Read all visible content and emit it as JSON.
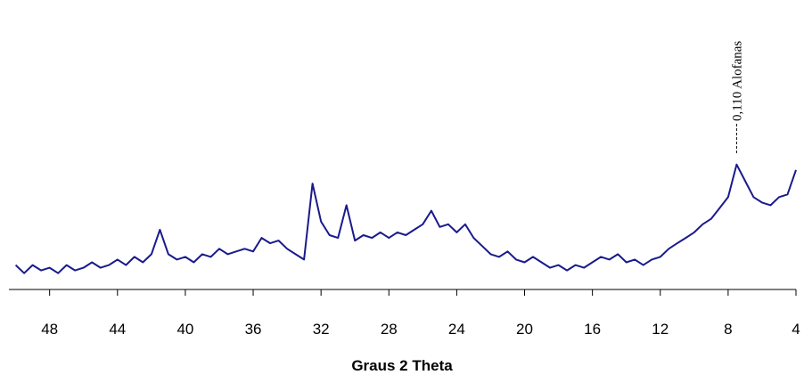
{
  "chart_data": {
    "type": "line",
    "xlabel": "Graus 2 Theta",
    "x": [
      50,
      49.5,
      49,
      48.5,
      48,
      47.5,
      47,
      46.5,
      46,
      45.5,
      45,
      44.5,
      44,
      43.5,
      43,
      42.5,
      42,
      41.5,
      41,
      40.5,
      40,
      39.5,
      39,
      38.5,
      38,
      37.5,
      37,
      36.5,
      36,
      35.5,
      35,
      34.5,
      34,
      33.5,
      33,
      32.5,
      32,
      31.5,
      31,
      30.5,
      30,
      29.5,
      29,
      28.5,
      28,
      27.5,
      27,
      26.5,
      26,
      25.5,
      25,
      24.5,
      24,
      23.5,
      23,
      22.5,
      22,
      21.5,
      21,
      20.5,
      20,
      19.5,
      19,
      18.5,
      18,
      17.5,
      17,
      16.5,
      16,
      15.5,
      15,
      14.5,
      14,
      13.5,
      13,
      12.5,
      12,
      11.5,
      11,
      10.5,
      10,
      9.5,
      9,
      8.5,
      8,
      7.5,
      7,
      6.5,
      6,
      5.5,
      5,
      4.5,
      4
    ],
    "series": [
      {
        "color": "#1a1a8c",
        "values": [
          9,
          6,
          9,
          7,
          8,
          6,
          9,
          7,
          8,
          10,
          8,
          9,
          11,
          9,
          12,
          10,
          13,
          22,
          13,
          11,
          12,
          10,
          13,
          12,
          15,
          13,
          14,
          15,
          14,
          19,
          17,
          18,
          15,
          13,
          11,
          39,
          25,
          20,
          19,
          31,
          18,
          20,
          19,
          21,
          19,
          21,
          20,
          22,
          24,
          29,
          23,
          24,
          21,
          24,
          19,
          16,
          13,
          12,
          14,
          11,
          10,
          12,
          10,
          8,
          9,
          7,
          9,
          8,
          10,
          12,
          11,
          13,
          10,
          11,
          9,
          11,
          12,
          15,
          17,
          19,
          21,
          24,
          26,
          30,
          34,
          46,
          40,
          34,
          32,
          31,
          34,
          35,
          44
        ]
      }
    ],
    "xlim": [
      50.4,
      4
    ],
    "xticks": [
      48,
      44,
      40,
      36,
      32,
      28,
      24,
      20,
      16,
      12,
      8,
      4
    ],
    "ylim": [
      0,
      100
    ],
    "annotations": [
      {
        "text": "0,110 Alofanas",
        "x": 7.5
      }
    ]
  }
}
